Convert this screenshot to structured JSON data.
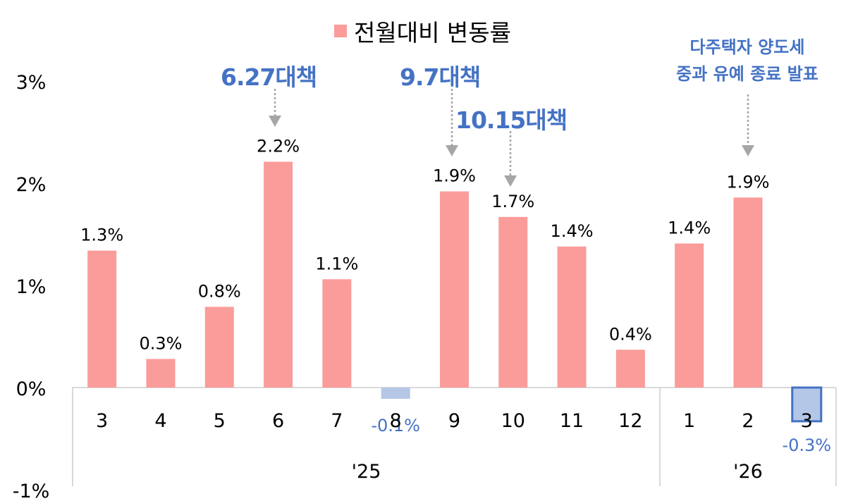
{
  "chart_data": {
    "type": "bar",
    "legend": {
      "label": "전월대비 변동률",
      "position": "top-center"
    },
    "y_ticks": [
      "3%",
      "2%",
      "1%",
      "0%",
      "-1%"
    ],
    "ylim": [
      -1,
      3
    ],
    "categories": [
      "3",
      "4",
      "5",
      "6",
      "7",
      "8",
      "9",
      "10",
      "11",
      "12",
      "1",
      "2",
      "3"
    ],
    "groups": [
      {
        "label": "'25",
        "categories": [
          "3",
          "4",
          "5",
          "6",
          "7",
          "8",
          "9",
          "10",
          "11",
          "12"
        ]
      },
      {
        "label": "'26",
        "categories": [
          "1",
          "2",
          "3"
        ]
      }
    ],
    "series": [
      {
        "name": "전월대비 변동률",
        "values": [
          1.34,
          0.28,
          0.79,
          2.21,
          1.06,
          -0.11,
          1.92,
          1.67,
          1.38,
          0.37,
          1.41,
          1.86,
          -0.33
        ],
        "labels": [
          "1.3%",
          "0.3%",
          "0.8%",
          "2.2%",
          "1.1%",
          "-0.1%",
          "1.9%",
          "1.7%",
          "1.4%",
          "0.4%",
          "1.4%",
          "1.9%",
          "-0.3%"
        ]
      }
    ],
    "colors": {
      "positive": "#fa9c9a",
      "negative": "#b4c7e7",
      "highlight_border": "#4472c4",
      "annotation": "#4472c4",
      "arrow": "#a6a6a6",
      "axis": "#d9d9d9"
    },
    "annotations": [
      {
        "text": "6.27대책",
        "target_category_index": 3,
        "style": "big"
      },
      {
        "text": "9.7대책",
        "target_category_index": 6,
        "style": "big"
      },
      {
        "text": "10.15대책",
        "target_category_index": 7,
        "style": "big"
      },
      {
        "lines": [
          "다주택자 양도세",
          "중과 유예 종료 발표"
        ],
        "target_category_index": 11,
        "style": "small"
      }
    ],
    "highlighted_category_index": 12,
    "grid": false
  }
}
